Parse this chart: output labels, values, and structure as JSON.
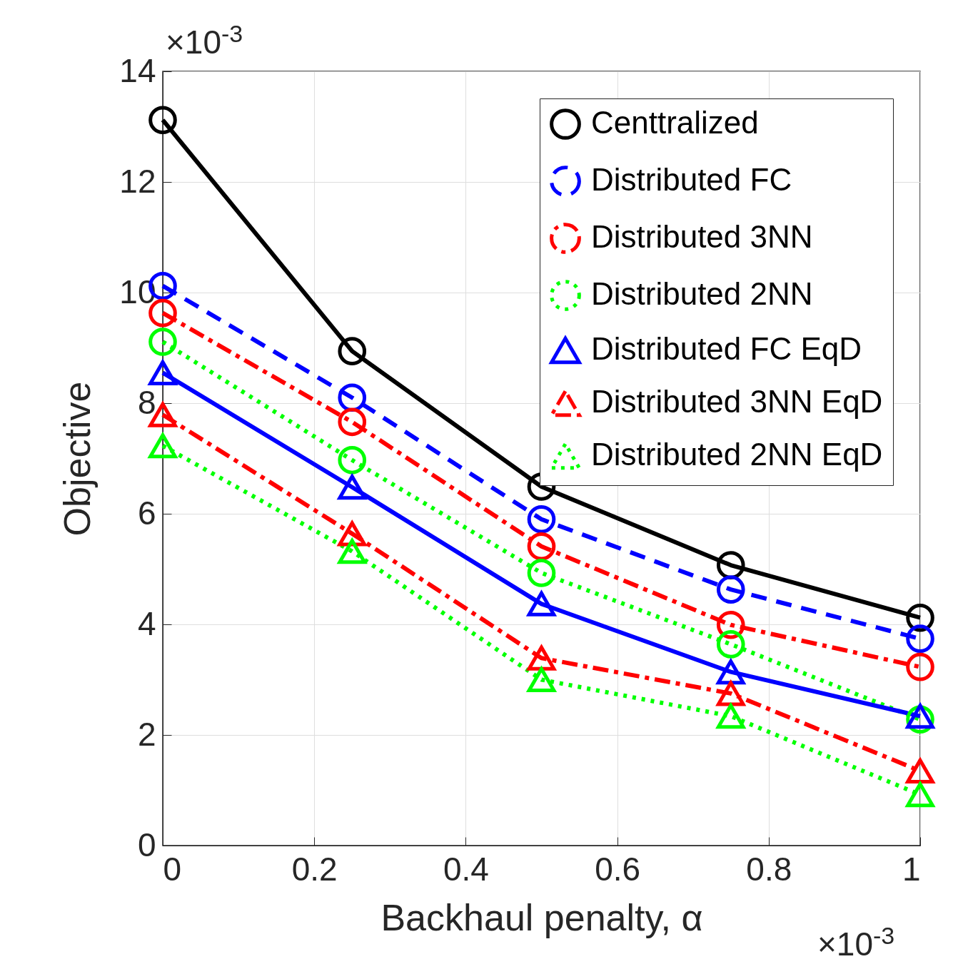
{
  "chart_data": {
    "type": "line",
    "xlabel": "Backhaul penalty, α",
    "ylabel": "Objective",
    "x": [
      0,
      0.25,
      0.5,
      0.75,
      1
    ],
    "xlim": [
      0,
      1
    ],
    "xticks": [
      0,
      0.2,
      0.4,
      0.6,
      0.8,
      1
    ],
    "ylim": [
      0,
      14
    ],
    "yticks": [
      0,
      2,
      4,
      6,
      8,
      10,
      12,
      14
    ],
    "grid": true,
    "legend": "top right",
    "annotations": [
      "×10$^{-3}$",
      "×10$^{-3}$"
    ],
    "series": [
      {
        "name": "Centtralized",
        "color": "#000000",
        "marker": "circle",
        "line_style": "solid",
        "values": [
          13.12,
          8.94,
          6.49,
          5.07,
          4.12
        ]
      },
      {
        "name": "Distributed FC",
        "color": "#0000ff",
        "marker": "circle",
        "line_style": "dashed",
        "values": [
          10.12,
          8.1,
          5.9,
          4.63,
          3.74
        ]
      },
      {
        "name": "Distributed 3NN",
        "color": "#ff0000",
        "marker": "circle",
        "line_style": "dashdot",
        "values": [
          9.63,
          7.66,
          5.41,
          3.99,
          3.23
        ]
      },
      {
        "name": "Distributed 2NN",
        "color": "#00ff00",
        "marker": "circle",
        "line_style": "dotted",
        "values": [
          9.11,
          6.97,
          4.93,
          3.64,
          2.28
        ]
      },
      {
        "name": "Distributed FC EqD",
        "color": "#0000ff",
        "marker": "triangle",
        "line_style": "solid",
        "values": [
          8.55,
          6.48,
          4.37,
          3.14,
          2.34
        ]
      },
      {
        "name": "Distributed 3NN EqD",
        "color": "#ff0000",
        "marker": "triangle",
        "line_style": "dashdot",
        "values": [
          7.79,
          5.64,
          3.39,
          2.75,
          1.35
        ]
      },
      {
        "name": "Distributed 2NN EqD",
        "color": "#00ff00",
        "marker": "triangle",
        "line_style": "dotted",
        "values": [
          7.23,
          5.32,
          3.0,
          2.34,
          0.92
        ]
      }
    ]
  }
}
